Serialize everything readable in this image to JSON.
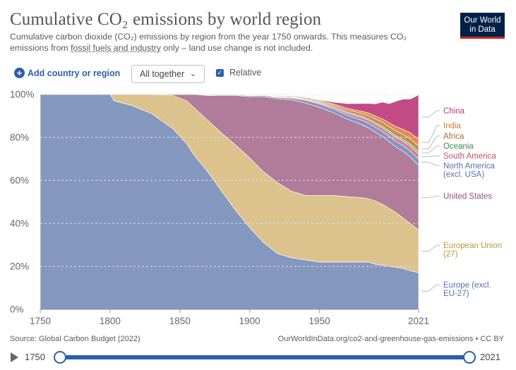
{
  "header": {
    "title": "Cumulative CO₂ emissions by world region",
    "subtitle_1": "Cumulative carbon dioxide (CO₂) emissions by region from the year 1750 onwards. This measures CO₂ emissions from ",
    "subtitle_link": "fossil fuels and industry",
    "subtitle_2": " only – land use change is not included.",
    "logo_line1": "Our World",
    "logo_line2": "in Data"
  },
  "controls": {
    "add_label": "Add country or region",
    "add_icon": "+",
    "select_value": "All together",
    "select_chevron": "⌄",
    "relative_label": "Relative",
    "relative_check": "✓"
  },
  "chart_data": {
    "type": "area",
    "stacked": true,
    "relative": true,
    "x": [
      1750,
      1775,
      1800,
      1803,
      1815,
      1830,
      1845,
      1855,
      1860,
      1870,
      1880,
      1890,
      1900,
      1910,
      1920,
      1930,
      1940,
      1950,
      1960,
      1970,
      1980,
      1985,
      1990,
      1995,
      2000,
      2005,
      2010,
      2015,
      2021
    ],
    "series": [
      {
        "name": "Europe (excl. EU-27)",
        "color": "#8497bf",
        "values": [
          100,
          100,
          100,
          97,
          95,
          91,
          84,
          77,
          72,
          64,
          55,
          46,
          38,
          31,
          26,
          24,
          23,
          22,
          22,
          22,
          22,
          22,
          21,
          20.5,
          20,
          19.5,
          19,
          18,
          17
        ]
      },
      {
        "name": "European Union (27)",
        "color": "#dcc38e",
        "values": [
          0,
          0,
          0,
          3,
          5,
          9,
          15.5,
          20,
          22,
          24,
          27,
          30.5,
          32.5,
          33,
          33,
          31,
          30,
          31,
          31,
          30.5,
          30,
          29.5,
          29.5,
          28.5,
          27,
          25.5,
          23.5,
          22,
          20
        ]
      },
      {
        "name": "United States",
        "color": "#b17c99",
        "values": [
          0,
          0,
          0,
          0,
          0,
          0,
          0.5,
          3,
          6,
          11.5,
          17.5,
          23,
          28.5,
          35,
          39,
          42.5,
          43,
          41,
          38.5,
          36,
          34,
          33,
          32,
          31.5,
          31,
          30.5,
          31,
          31,
          30
        ]
      },
      {
        "name": "North America (excl. USA)",
        "color": "#8494c4",
        "values": [
          0,
          0,
          0,
          0,
          0,
          0,
          0,
          0,
          0,
          0.2,
          0.3,
          0.3,
          0.4,
          0.5,
          0.6,
          0.8,
          1.2,
          1.5,
          1.7,
          1.9,
          2.1,
          2.2,
          2.3,
          2.4,
          2.5,
          2.6,
          2.7,
          2.8,
          3
        ]
      },
      {
        "name": "South America",
        "color": "#d87c8a",
        "values": [
          0,
          0,
          0,
          0,
          0,
          0,
          0,
          0,
          0,
          0,
          0,
          0,
          0.1,
          0.1,
          0.2,
          0.3,
          0.4,
          0.5,
          0.7,
          0.9,
          1.2,
          1.3,
          1.4,
          1.5,
          1.6,
          1.7,
          1.8,
          2,
          2.2
        ]
      },
      {
        "name": "Oceania",
        "color": "#7fbf90",
        "values": [
          0,
          0,
          0,
          0,
          0,
          0,
          0,
          0,
          0,
          0,
          0,
          0,
          0,
          0.1,
          0.1,
          0.2,
          0.3,
          0.3,
          0.4,
          0.5,
          0.6,
          0.7,
          0.7,
          0.8,
          0.9,
          0.9,
          1,
          1.1,
          1.2
        ]
      },
      {
        "name": "Africa",
        "color": "#c38e5a",
        "values": [
          0,
          0,
          0,
          0,
          0,
          0,
          0,
          0,
          0,
          0,
          0,
          0,
          0,
          0.1,
          0.2,
          0.3,
          0.4,
          0.5,
          0.7,
          1,
          1.3,
          1.5,
          1.7,
          1.9,
          2,
          2.2,
          2.3,
          2.5,
          2.6
        ]
      },
      {
        "name": "India",
        "color": "#e28c4e",
        "values": [
          0,
          0,
          0,
          0,
          0,
          0,
          0,
          0,
          0,
          0,
          0,
          0,
          0.1,
          0.2,
          0.3,
          0.3,
          0.4,
          0.5,
          0.6,
          0.8,
          1,
          1.2,
          1.4,
          1.6,
          1.8,
          2.1,
          2.4,
          2.8,
          3.2
        ]
      },
      {
        "name": "China",
        "color": "#c24b86",
        "values": [
          0,
          0,
          0,
          0,
          0,
          0,
          0,
          0,
          0,
          0,
          0,
          0,
          0,
          0,
          0,
          0,
          0,
          0.2,
          0.8,
          2.1,
          3.6,
          4.4,
          5.6,
          7.7,
          8.9,
          11.9,
          14.1,
          15.6,
          20.6
        ]
      }
    ],
    "x_ticks": [
      "1750",
      "1800",
      "1850",
      "1900",
      "1950",
      "2021"
    ],
    "x_tick_values": [
      1750,
      1800,
      1850,
      1900,
      1950,
      2021
    ],
    "y_ticks": [
      "0%",
      "20%",
      "40%",
      "60%",
      "80%",
      "100%"
    ],
    "y_tick_values": [
      0,
      20,
      40,
      60,
      80,
      100
    ],
    "xlim": [
      1750,
      2021
    ],
    "ylim": [
      0,
      100
    ],
    "grid": "horizontal dashed",
    "legend": [
      {
        "label": "China",
        "color": "#b13c78"
      },
      {
        "label": "India",
        "color": "#d27a2e"
      },
      {
        "label": "Africa",
        "color": "#a86b30"
      },
      {
        "label": "Oceania",
        "color": "#3c8c4e"
      },
      {
        "label": "South America",
        "color": "#c0505f"
      },
      {
        "label": "North America (excl. USA)",
        "lines": [
          "North America",
          "(excl. USA)"
        ],
        "color": "#5a6fa8"
      },
      {
        "label": "United States",
        "color": "#9a4e78"
      },
      {
        "label": "European Union (27)",
        "lines": [
          "European Union",
          "(27)"
        ],
        "color": "#b9973f"
      },
      {
        "label": "Europe (excl. EU-27)",
        "lines": [
          "Europe (excl.",
          "EU-27)"
        ],
        "color": "#5a6fa8"
      }
    ],
    "legend_placement": "right"
  },
  "footer": {
    "source": "Source: Global Carbon Budget (2022)",
    "url": "OurWorldInData.org/co2-and-greenhouse-gas-emissions • CC BY"
  },
  "timeline": {
    "start_year": "1750",
    "end_year": "2021"
  },
  "colors": {
    "accent": "#2e5eaa",
    "logo_bg": "#002147",
    "logo_accent": "#ce261e"
  }
}
